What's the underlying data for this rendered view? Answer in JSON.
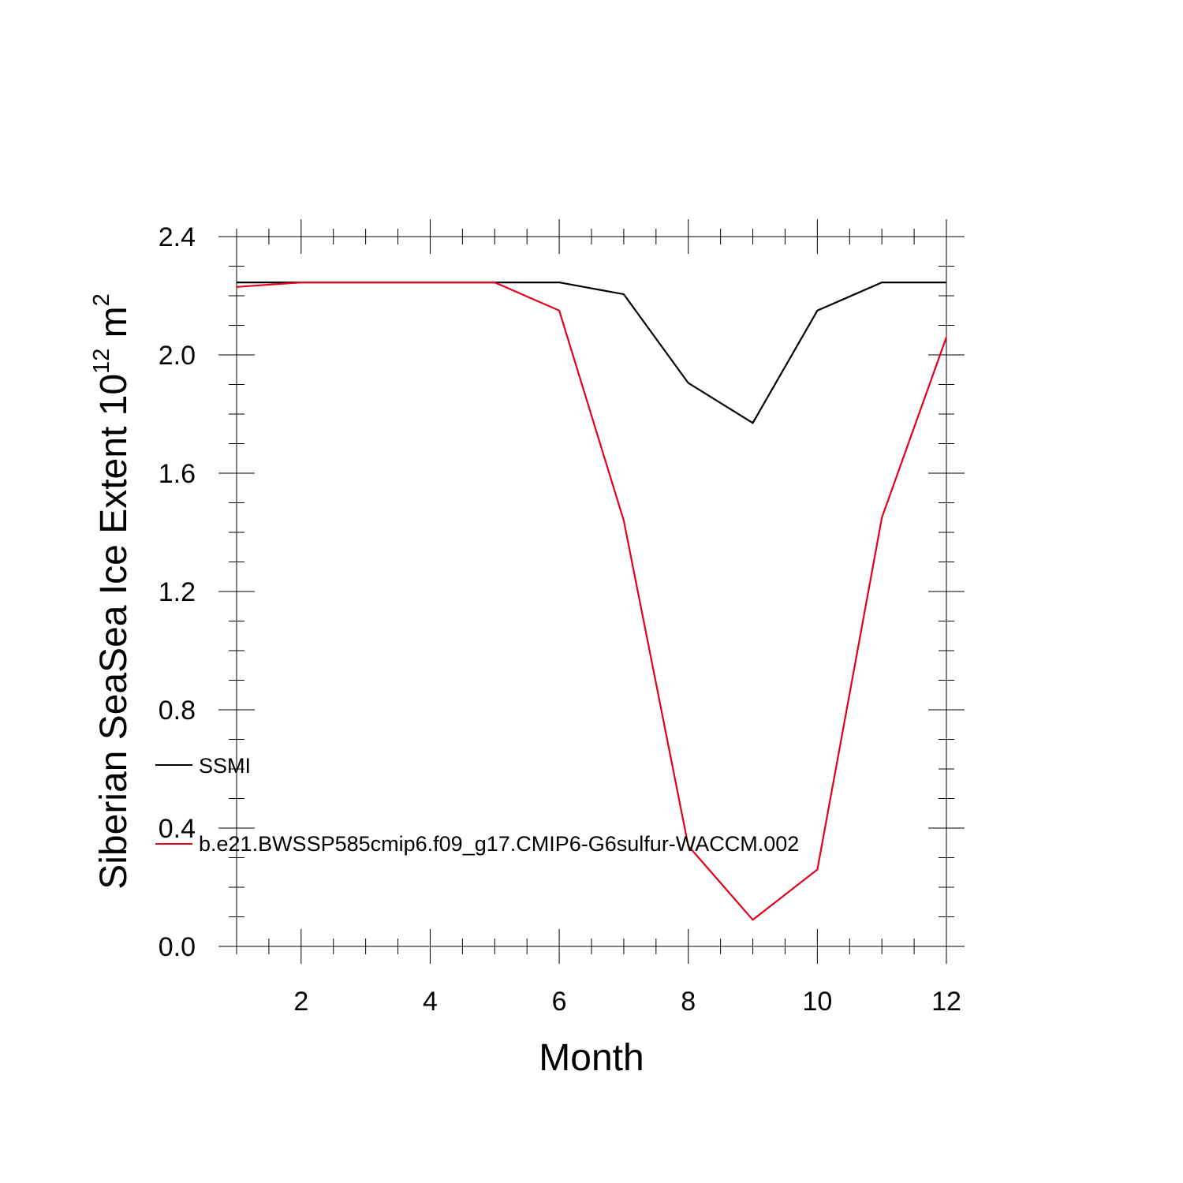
{
  "chart_data": {
    "type": "line",
    "xlabel": "Month",
    "ylabel": {
      "prefix": "Siberian SeaSea Ice Extent 10",
      "exponent": "12",
      "unit": " m",
      "unit_exponent": "2"
    },
    "xlim": [
      1,
      12
    ],
    "ylim": [
      0,
      2.4
    ],
    "x_ticks": [
      2,
      4,
      6,
      8,
      10,
      12
    ],
    "x_tick_labels": [
      "2",
      "4",
      "6",
      "8",
      "10",
      "12"
    ],
    "y_ticks": [
      0,
      0.4,
      0.8,
      1.2,
      1.6,
      2.0,
      2.4
    ],
    "y_tick_labels": [
      "0.0",
      "0.4",
      "0.8",
      "1.2",
      "1.6",
      "2.0",
      "2.4"
    ],
    "grid": false,
    "x": [
      1,
      2,
      3,
      4,
      5,
      6,
      7,
      8,
      9,
      10,
      11,
      12
    ],
    "series": [
      {
        "name": "SSMI",
        "color": "#000000",
        "values": [
          2.245,
          2.245,
          2.245,
          2.245,
          2.245,
          2.245,
          2.205,
          1.905,
          1.77,
          2.15,
          2.245,
          2.245
        ]
      },
      {
        "name": "b.e21.BWSSP585cmip6.f09_g17.CMIP6-G6sulfur-WACCM.002",
        "color": "#e3001b",
        "values": [
          2.23,
          2.245,
          2.245,
          2.245,
          2.245,
          2.15,
          1.44,
          0.34,
          0.09,
          0.26,
          1.45,
          2.06
        ]
      }
    ]
  }
}
